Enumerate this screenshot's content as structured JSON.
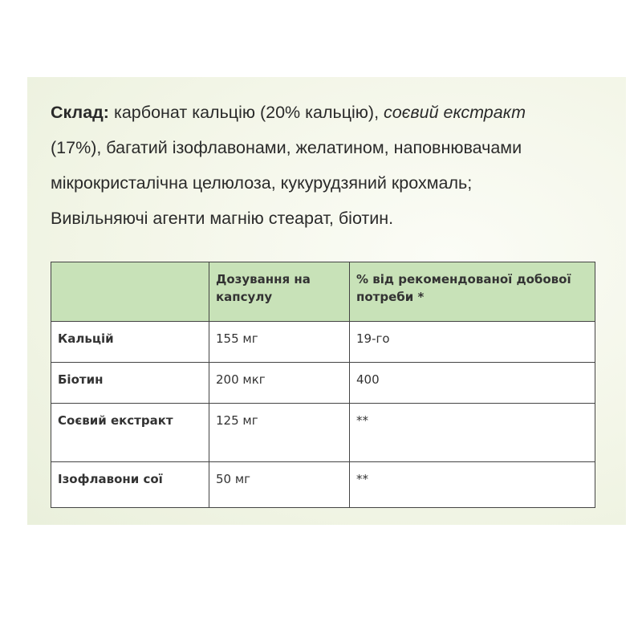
{
  "composition": {
    "label": "Склад:",
    "line1_text": " карбонат кальцію (20% кальцію), ",
    "line1_italic": "соєвий екстракт",
    "line2": "(17%), багатий ізофлавонами, желатином, наповнювачами",
    "line3": "мікрокристалічна целюлоза, кукурудзяний крохмаль;",
    "line4": "Вивільняючі агенти магнію стеарат, біотин."
  },
  "table": {
    "header": [
      "",
      "Дозування на капсулу",
      "% від рекомендованої добової потреби *"
    ],
    "rows": [
      [
        "Кальцій",
        "155 мг",
        "19-го"
      ],
      [
        "Біотин",
        "200 мкг",
        "400"
      ],
      [
        "Соєвий екстракт",
        "125 мг",
        "**"
      ],
      [
        "Ізофлавони сої",
        "50 мг",
        "**"
      ]
    ],
    "header_color": "#c8e2b8"
  }
}
